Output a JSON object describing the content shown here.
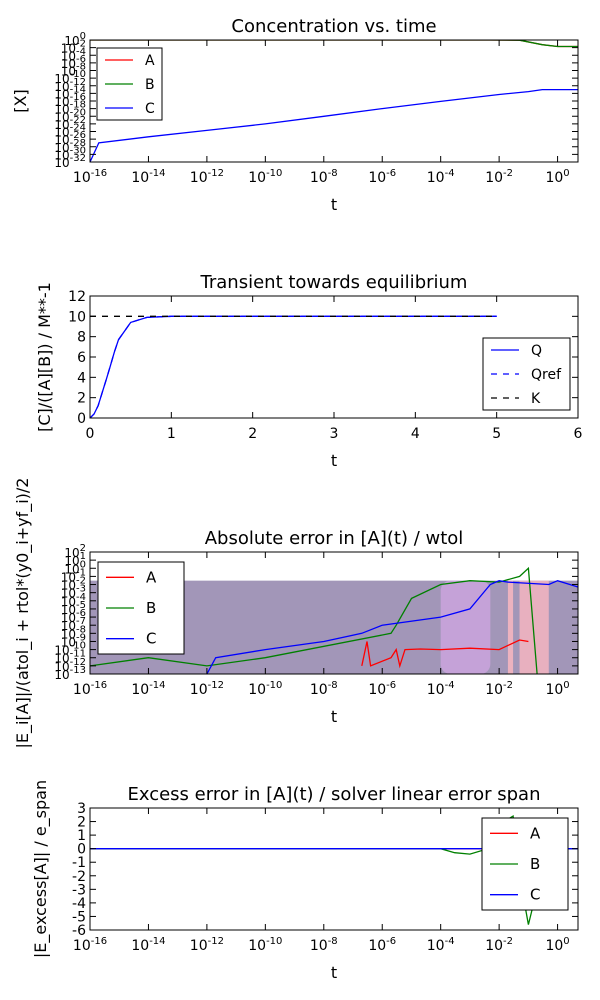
{
  "colors": {
    "A": "#ff0000",
    "B": "#008000",
    "C": "#0000ff",
    "K": "#000000",
    "violet": "#7b6a9a",
    "pink": "#f4b5c0",
    "lilac": "#c9a3dc"
  },
  "chart_data": [
    {
      "type": "line",
      "title": "Concentration vs. time",
      "xlabel": "t",
      "ylabel": "[X]",
      "xscale": "log",
      "yscale": "log",
      "xlim": [
        1e-16,
        5
      ],
      "ylim": [
        1e-32,
        1
      ],
      "xtick_labels": [
        "10-16",
        "10-14",
        "10-12",
        "10-10",
        "10-8",
        "10-6",
        "10-4",
        "10-2",
        "100"
      ],
      "ytick_labels": [
        "100",
        "10-2",
        "10-4",
        "10-6",
        "10-8",
        "10-10",
        "10-12",
        "10-14",
        "10-16",
        "10-18",
        "10-20",
        "10-22",
        "10-24",
        "10-26",
        "10-28",
        "10-30",
        "10-32"
      ],
      "legend": {
        "position": "top-left",
        "entries": [
          "A",
          "B",
          "C"
        ]
      },
      "series": [
        {
          "name": "A",
          "points": [
            [
              1e-16,
              1
            ],
            [
              0.005,
              1
            ],
            [
              0.05,
              0.9
            ],
            [
              0.3,
              0.06
            ],
            [
              1,
              0.02
            ],
            [
              5,
              0.02
            ]
          ]
        },
        {
          "name": "B",
          "points": [
            [
              1e-16,
              1
            ],
            [
              0.005,
              1
            ],
            [
              0.05,
              0.9
            ],
            [
              0.3,
              0.06
            ],
            [
              1,
              0.02
            ],
            [
              5,
              0.02
            ]
          ]
        },
        {
          "name": "C",
          "points": [
            [
              1e-16,
              1e-32
            ],
            [
              2e-16,
              1e-27
            ],
            [
              1e-14,
              4e-26
            ],
            [
              1e-12,
              2e-24
            ],
            [
              1e-10,
              1e-22
            ],
            [
              1e-08,
              1e-20
            ],
            [
              1e-06,
              1e-18
            ],
            [
              0.0001,
              8e-17
            ],
            [
              0.01,
              5e-15
            ],
            [
              0.1,
              3e-14
            ],
            [
              0.3,
              1e-13
            ],
            [
              5,
              1e-13
            ]
          ]
        }
      ]
    },
    {
      "type": "line",
      "title": "Transient towards equilibrium",
      "xlabel": "t",
      "ylabel": "[C]/([A][B]) / M**-1",
      "xlim": [
        0,
        6
      ],
      "ylim": [
        0,
        12
      ],
      "xtick_labels": [
        "0",
        "1",
        "2",
        "3",
        "4",
        "5",
        "6"
      ],
      "ytick_labels": [
        "0",
        "2",
        "4",
        "6",
        "8",
        "10",
        "12"
      ],
      "legend": {
        "position": "lower-right",
        "entries": [
          "Q",
          "Qref",
          "K"
        ]
      },
      "series": [
        {
          "name": "Q",
          "points": [
            [
              0,
              0
            ],
            [
              0.05,
              0.4
            ],
            [
              0.1,
              1.2
            ],
            [
              0.15,
              2.5
            ],
            [
              0.2,
              3.8
            ],
            [
              0.25,
              5.1
            ],
            [
              0.3,
              6.5
            ],
            [
              0.35,
              7.7
            ],
            [
              0.5,
              9.4
            ],
            [
              0.7,
              9.9
            ],
            [
              1,
              10
            ],
            [
              5,
              10
            ]
          ]
        },
        {
          "name": "Qref",
          "points": [
            [
              0,
              0
            ],
            [
              0.05,
              0.4
            ],
            [
              0.1,
              1.2
            ],
            [
              0.15,
              2.5
            ],
            [
              0.2,
              3.8
            ],
            [
              0.25,
              5.1
            ],
            [
              0.3,
              6.5
            ],
            [
              0.35,
              7.7
            ],
            [
              0.5,
              9.4
            ],
            [
              0.7,
              9.9
            ],
            [
              1,
              10
            ],
            [
              5,
              10
            ]
          ]
        },
        {
          "name": "K",
          "points": [
            [
              0,
              10
            ],
            [
              5,
              10
            ]
          ]
        }
      ]
    },
    {
      "type": "line",
      "title": "Absolute error in [A](t) / wtol",
      "xlabel": "t",
      "ylabel": "|E_i[A]|/(atol_i + rtol*(y0_i+yf_i)/2",
      "xscale": "log",
      "yscale": "log",
      "xlim": [
        1e-16,
        5
      ],
      "ylim": [
        1e-13,
        100
      ],
      "xtick_labels": [
        "10-16",
        "10-14",
        "10-12",
        "10-10",
        "10-8",
        "10-6",
        "10-4",
        "10-2",
        "100"
      ],
      "ytick_labels": [
        "102",
        "101",
        "100",
        "10-1",
        "10-2",
        "10-3",
        "10-4",
        "10-5",
        "10-6",
        "10-7",
        "10-8",
        "10-9",
        "10-10",
        "10-11",
        "10-12",
        "10-13"
      ],
      "legend": {
        "position": "top-left",
        "entries": [
          "A",
          "B",
          "C"
        ]
      },
      "series": [
        {
          "name": "A",
          "points": [
            [
              2e-07,
              1e-12
            ],
            [
              3e-07,
              1e-09
            ],
            [
              4e-07,
              1e-12
            ],
            [
              2e-06,
              1e-11
            ],
            [
              3e-06,
              1e-10
            ],
            [
              4e-06,
              1e-12
            ],
            [
              6e-06,
              1e-10
            ],
            [
              2e-05,
              1.2e-10
            ],
            [
              0.0001,
              1e-10
            ],
            [
              0.001,
              1.5e-10
            ],
            [
              0.01,
              1e-10
            ],
            [
              0.05,
              1.5e-09
            ],
            [
              0.1,
              1e-09
            ]
          ]
        },
        {
          "name": "B",
          "points": [
            [
              1e-16,
              1e-12
            ],
            [
              1e-14,
              1e-11
            ],
            [
              1e-12,
              1e-12
            ],
            [
              1e-10,
              1e-11
            ],
            [
              2e-06,
              1e-08
            ],
            [
              3e-06,
              1e-07
            ],
            [
              1e-05,
              0.0002
            ],
            [
              0.0001,
              0.01
            ],
            [
              0.001,
              0.03
            ],
            [
              0.01,
              0.02
            ],
            [
              0.05,
              0.1
            ],
            [
              0.1,
              1
            ],
            [
              0.2,
              1e-13
            ]
          ]
        },
        {
          "name": "C",
          "points": [
            [
              1e-12,
              1e-13
            ],
            [
              2e-12,
              1e-11
            ],
            [
              1e-10,
              1e-10
            ],
            [
              1e-08,
              1e-09
            ],
            [
              2e-07,
              1e-08
            ],
            [
              1e-06,
              1e-07
            ],
            [
              0.0001,
              1e-06
            ],
            [
              0.001,
              1e-05
            ],
            [
              0.005,
              0.01
            ],
            [
              0.01,
              0.03
            ],
            [
              0.02,
              0.02
            ],
            [
              0.5,
              0.01
            ],
            [
              1,
              0.03
            ],
            [
              5,
              0.005
            ]
          ]
        }
      ]
    },
    {
      "type": "line",
      "title": "Excess error in [A](t) / solver linear error span",
      "xlabel": "t",
      "ylabel": "|E_excess[A]| / e_span",
      "xscale": "log",
      "xlim": [
        1e-16,
        5
      ],
      "ylim": [
        -6,
        3
      ],
      "xtick_labels": [
        "10-16",
        "10-14",
        "10-12",
        "10-10",
        "10-8",
        "10-6",
        "10-4",
        "10-2",
        "100"
      ],
      "ytick_labels": [
        "3",
        "2",
        "1",
        "0",
        "-1",
        "-2",
        "-3",
        "-4",
        "-5",
        "-6"
      ],
      "legend": {
        "position": "top-right",
        "entries": [
          "A",
          "B",
          "C"
        ]
      },
      "series": [
        {
          "name": "A",
          "points": [
            [
              1e-16,
              0
            ],
            [
              5,
              0
            ]
          ]
        },
        {
          "name": "B",
          "points": [
            [
              1e-16,
              0
            ],
            [
              0.0001,
              0
            ],
            [
              0.0003,
              -0.3
            ],
            [
              0.001,
              -0.4
            ],
            [
              0.003,
              -0.1
            ],
            [
              0.01,
              1.8
            ],
            [
              0.03,
              2.4
            ],
            [
              0.05,
              -2
            ],
            [
              0.1,
              -5.6
            ],
            [
              0.2,
              -3
            ],
            [
              0.5,
              0
            ],
            [
              5,
              0
            ]
          ]
        },
        {
          "name": "C",
          "points": [
            [
              1e-16,
              0
            ],
            [
              5,
              0
            ]
          ]
        }
      ]
    }
  ]
}
